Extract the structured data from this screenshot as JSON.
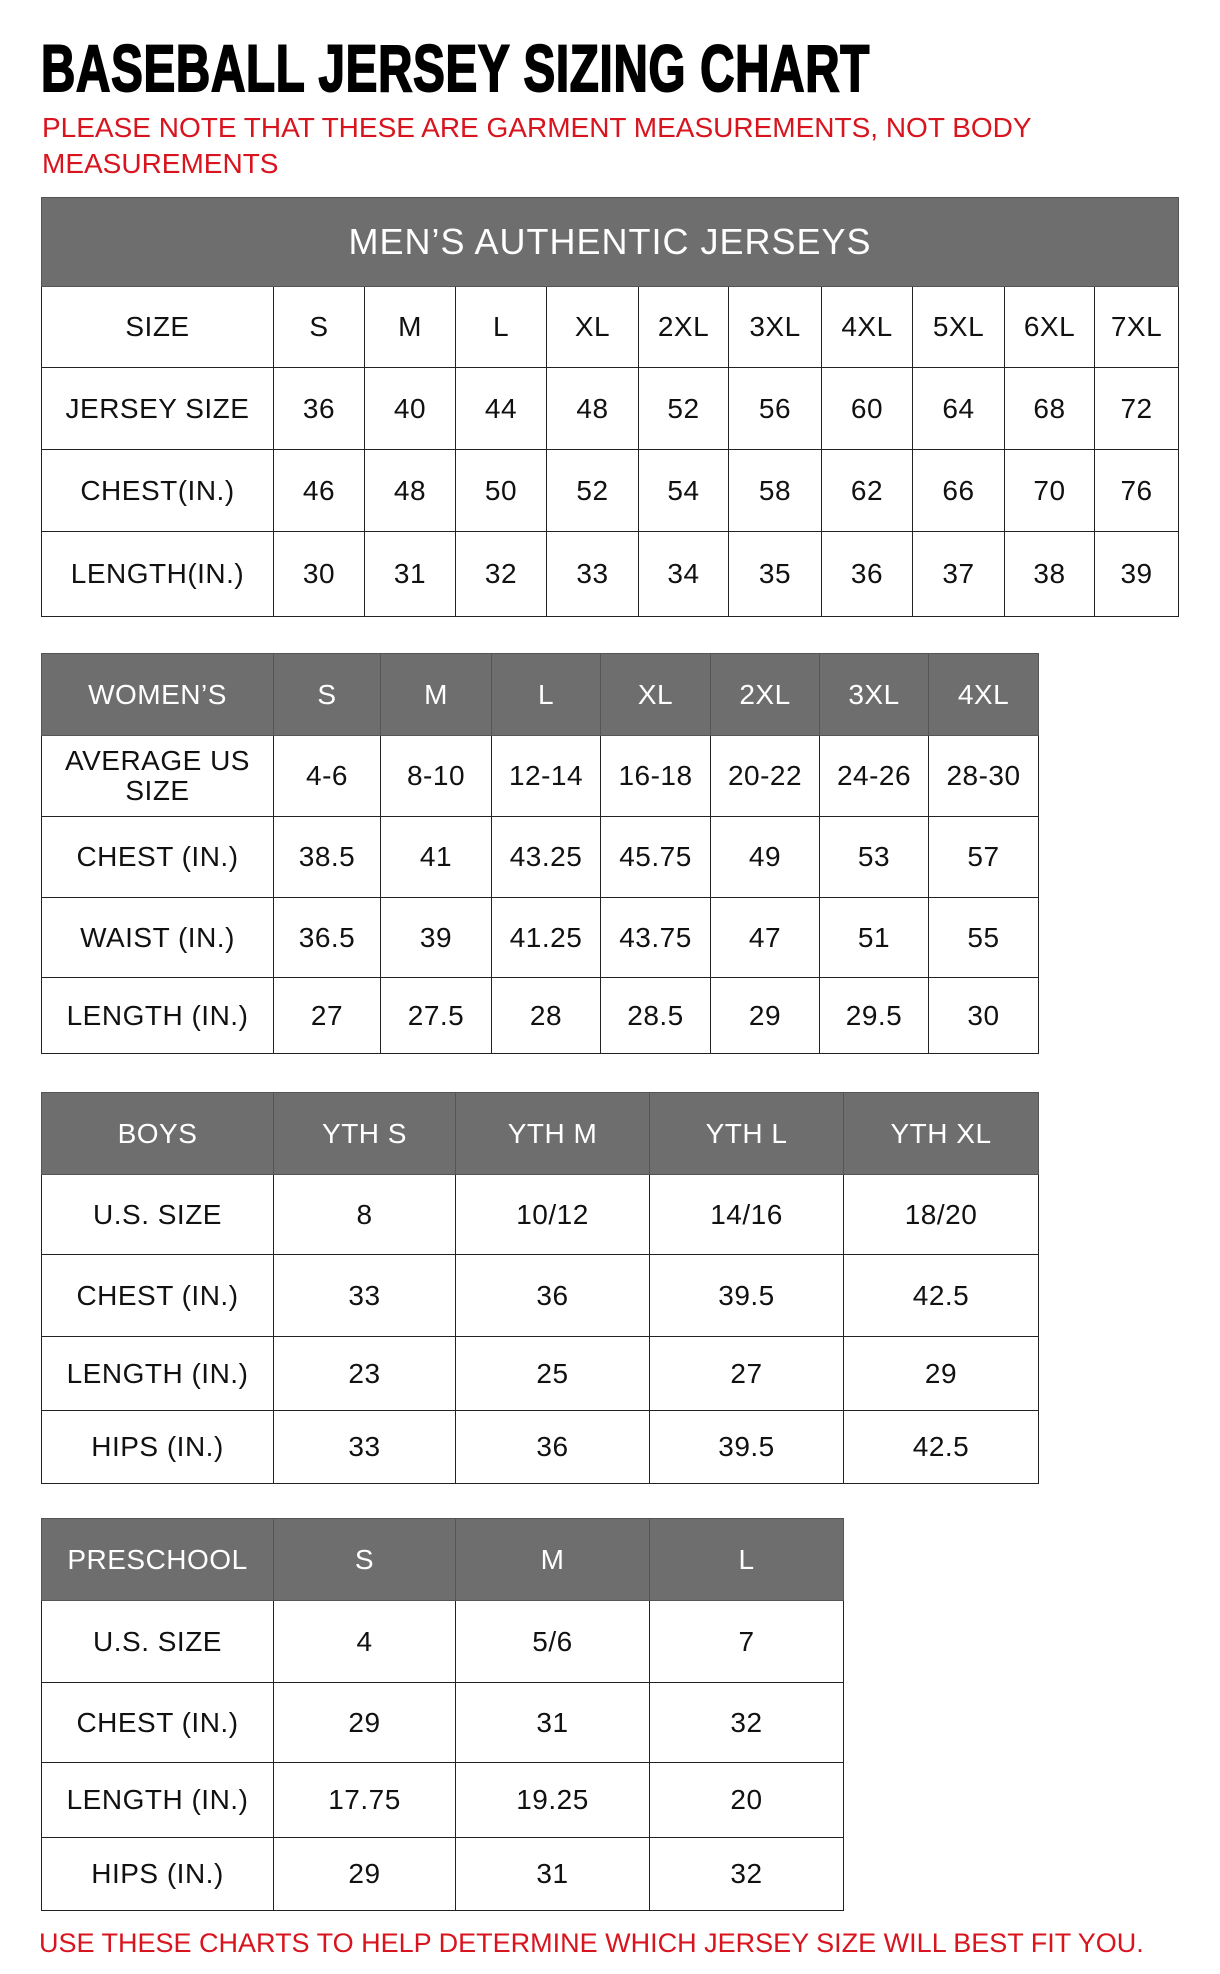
{
  "title": "BASEBALL JERSEY SIZING CHART",
  "note": "PLEASE NOTE THAT THESE ARE GARMENT MEASUREMENTS, NOT BODY MEASUREMENTS",
  "footer": "USE THESE CHARTS TO HELP DETERMINE WHICH JERSEY SIZE WILL BEST FIT YOU.",
  "colors": {
    "header_bg": "#6e6e6e",
    "note_red": "#d8141e"
  },
  "tables": [
    {
      "id": "mens",
      "banner": "MEN’S AUTHENTIC JERSEYS",
      "header_is_gray": false,
      "header": [
        "SIZE",
        "S",
        "M",
        "L",
        "XL",
        "2XL",
        "3XL",
        "4XL",
        "5XL",
        "6XL",
        "7XL"
      ],
      "rows": [
        [
          "JERSEY SIZE",
          "36",
          "40",
          "44",
          "48",
          "52",
          "56",
          "60",
          "64",
          "68",
          "72"
        ],
        [
          "CHEST(IN.)",
          "46",
          "48",
          "50",
          "52",
          "54",
          "58",
          "62",
          "66",
          "70",
          "76"
        ],
        [
          "LENGTH(IN.)",
          "30",
          "31",
          "32",
          "33",
          "34",
          "35",
          "36",
          "37",
          "38",
          "39"
        ]
      ]
    },
    {
      "id": "womens",
      "header_is_gray": true,
      "header": [
        "WOMEN’S",
        "S",
        "M",
        "L",
        "XL",
        "2XL",
        "3XL",
        "4XL"
      ],
      "rows": [
        [
          "AVERAGE US SIZE",
          "4-6",
          "8-10",
          "12-14",
          "16-18",
          "20-22",
          "24-26",
          "28-30"
        ],
        [
          "CHEST (IN.)",
          "38.5",
          "41",
          "43.25",
          "45.75",
          "49",
          "53",
          "57"
        ],
        [
          "WAIST (IN.)",
          "36.5",
          "39",
          "41.25",
          "43.75",
          "47",
          "51",
          "55"
        ],
        [
          "LENGTH (IN.)",
          "27",
          "27.5",
          "28",
          "28.5",
          "29",
          "29.5",
          "30"
        ]
      ]
    },
    {
      "id": "boys",
      "header_is_gray": true,
      "header": [
        "BOYS",
        "YTH S",
        "YTH M",
        "YTH L",
        "YTH XL"
      ],
      "rows": [
        [
          "U.S. SIZE",
          "8",
          "10/12",
          "14/16",
          "18/20"
        ],
        [
          "CHEST (IN.)",
          "33",
          "36",
          "39.5",
          "42.5"
        ],
        [
          "LENGTH (IN.)",
          "23",
          "25",
          "27",
          "29"
        ],
        [
          "HIPS (IN.)",
          "33",
          "36",
          "39.5",
          "42.5"
        ]
      ]
    },
    {
      "id": "preschool",
      "header_is_gray": true,
      "header": [
        "PRESCHOOL",
        "S",
        "M",
        "L"
      ],
      "rows": [
        [
          "U.S. SIZE",
          "4",
          "5/6",
          "7"
        ],
        [
          "CHEST (IN.)",
          "29",
          "31",
          "32"
        ],
        [
          "LENGTH (IN.)",
          "17.75",
          "19.25",
          "20"
        ],
        [
          "HIPS (IN.)",
          "29",
          "31",
          "32"
        ]
      ]
    }
  ]
}
